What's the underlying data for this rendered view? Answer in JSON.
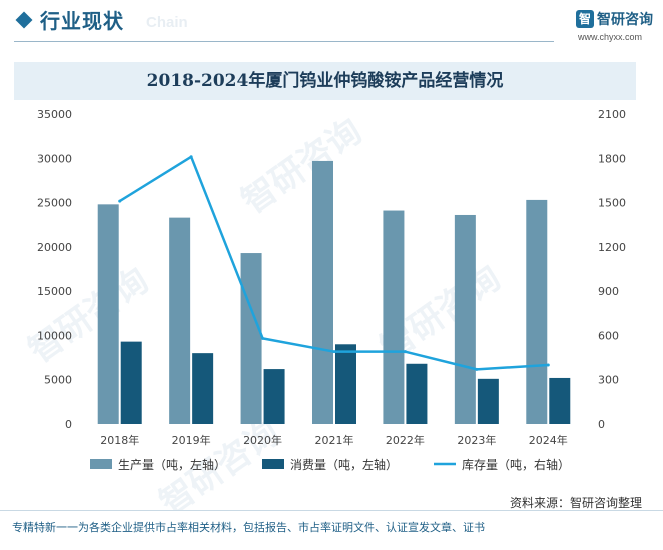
{
  "header": {
    "section_title": "行业现状",
    "section_subtitle": "Chain",
    "brand_name": "智研咨询",
    "brand_url": "www.chyxx.com"
  },
  "source": "资料来源：智研咨询整理",
  "footer": "专精特新一一为各类企业提供市占率相关材料，包括报告、市占率证明文件、认证宣发文章、证书",
  "colors": {
    "production": "#6a97ae",
    "consumption": "#15587a",
    "inventory": "#1fa3dc"
  },
  "chart_data": {
    "type": "bar",
    "title": "2018-2024年厦门钨业仲钨酸铵产品经营情况",
    "categories": [
      "2018年",
      "2019年",
      "2020年",
      "2021年",
      "2022年",
      "2023年",
      "2024年"
    ],
    "left_axis": {
      "min": 0,
      "max": 35000,
      "step": 5000
    },
    "right_axis": {
      "min": 0,
      "max": 2100,
      "step": 300
    },
    "series": [
      {
        "name": "生产量（吨，左轴）",
        "type": "bar",
        "axis": "left",
        "values": [
          24800,
          23300,
          19300,
          29700,
          24100,
          23600,
          25300
        ]
      },
      {
        "name": "消费量（吨，左轴）",
        "type": "bar",
        "axis": "left",
        "values": [
          9300,
          8000,
          6200,
          9000,
          6800,
          5100,
          5200
        ]
      },
      {
        "name": "库存量（吨，右轴）",
        "type": "line",
        "axis": "right",
        "values": [
          1510,
          1810,
          580,
          490,
          490,
          370,
          400
        ]
      }
    ],
    "legend_position": "bottom"
  }
}
